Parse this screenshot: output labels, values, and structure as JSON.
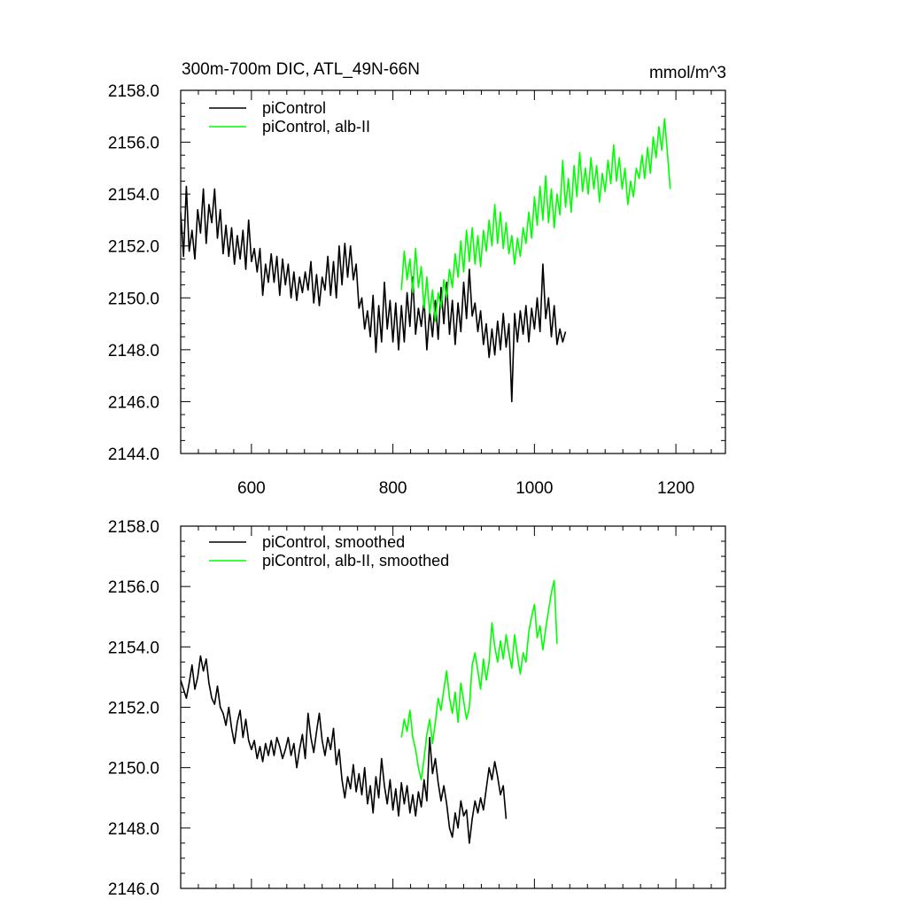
{
  "chart_data": [
    {
      "type": "line",
      "title": "300m-700m DIC, ATL_49N-66N",
      "units": "mmol/m^3",
      "xlabel": "",
      "ylabel": "",
      "xlim": [
        500,
        1270
      ],
      "ylim": [
        2144.0,
        2158.0
      ],
      "x_ticks": [
        600,
        800,
        1000,
        1200
      ],
      "x_tick_labels": [
        "600",
        "800",
        "1000",
        "1200"
      ],
      "y_ticks": [
        2144.0,
        2146.0,
        2148.0,
        2150.0,
        2152.0,
        2154.0,
        2156.0,
        2158.0
      ],
      "y_tick_labels": [
        "2144.0",
        "2146.0",
        "2148.0",
        "2150.0",
        "2152.0",
        "2154.0",
        "2156.0",
        "2158.0"
      ],
      "grid": false,
      "legend_position": "top-left",
      "series": [
        {
          "name": "piControl",
          "color": "#000000",
          "x_start": 500,
          "x_step": 4,
          "values": [
            2153.3,
            2151.6,
            2154.3,
            2151.8,
            2152.6,
            2151.5,
            2153.4,
            2152.5,
            2154.2,
            2152.1,
            2153.6,
            2152.9,
            2154.2,
            2152.3,
            2153.4,
            2151.7,
            2152.8,
            2151.6,
            2152.7,
            2151.3,
            2152.4,
            2151.5,
            2152.6,
            2151.1,
            2153.0,
            2151.4,
            2151.9,
            2151.0,
            2151.9,
            2150.1,
            2151.3,
            2150.6,
            2151.7,
            2150.6,
            2151.6,
            2150.1,
            2151.5,
            2150.5,
            2151.3,
            2150.0,
            2151.0,
            2149.9,
            2150.8,
            2150.2,
            2151.0,
            2150.3,
            2151.4,
            2149.8,
            2150.9,
            2149.7,
            2150.8,
            2150.3,
            2151.6,
            2150.1,
            2151.4,
            2150.0,
            2152.0,
            2150.5,
            2152.1,
            2150.8,
            2152.0,
            2150.7,
            2151.3,
            2149.6,
            2150.0,
            2148.8,
            2149.5,
            2148.5,
            2150.1,
            2147.9,
            2149.7,
            2148.3,
            2150.6,
            2148.8,
            2149.9,
            2148.3,
            2149.8,
            2148.0,
            2149.7,
            2148.3,
            2150.2,
            2148.9,
            2150.8,
            2148.6,
            2149.6,
            2148.9,
            2149.9,
            2148.0,
            2149.5,
            2148.5,
            2149.9,
            2148.4,
            2150.4,
            2149.0,
            2150.6,
            2148.6,
            2149.9,
            2148.2,
            2149.8,
            2148.7,
            2150.6,
            2149.2,
            2151.1,
            2149.3,
            2149.8,
            2148.7,
            2149.5,
            2148.2,
            2149.0,
            2147.7,
            2148.8,
            2147.8,
            2149.1,
            2148.0,
            2149.4,
            2148.1,
            2149.0,
            2146.0,
            2149.4,
            2148.3,
            2149.5,
            2148.6,
            2149.7,
            2148.3,
            2149.6,
            2148.8,
            2150.0,
            2148.7,
            2151.3,
            2149.2,
            2150.0,
            2148.5,
            2149.7,
            2148.2,
            2148.8,
            2148.3,
            2148.7
          ]
        },
        {
          "name": "piControl, alb-II",
          "color": "#00ff00",
          "x_start": 812,
          "x_step": 4,
          "values": [
            2150.3,
            2151.8,
            2150.7,
            2151.5,
            2150.2,
            2151.9,
            2150.4,
            2151.2,
            2149.6,
            2150.8,
            2149.4,
            2150.3,
            2149.1,
            2150.2,
            2149.6,
            2150.7,
            2150.0,
            2151.1,
            2150.4,
            2151.7,
            2150.8,
            2152.2,
            2151.0,
            2152.6,
            2151.4,
            2152.7,
            2151.3,
            2152.4,
            2151.2,
            2152.6,
            2151.8,
            2153.0,
            2152.0,
            2153.6,
            2152.1,
            2153.3,
            2151.9,
            2152.9,
            2151.7,
            2152.4,
            2151.3,
            2152.3,
            2151.6,
            2152.7,
            2152.1,
            2153.3,
            2152.3,
            2153.9,
            2152.8,
            2154.3,
            2153.0,
            2154.7,
            2152.9,
            2154.2,
            2152.7,
            2154.0,
            2153.2,
            2155.3,
            2153.5,
            2154.6,
            2153.3,
            2155.1,
            2153.9,
            2155.6,
            2154.1,
            2155.0,
            2154.0,
            2155.4,
            2154.2,
            2155.1,
            2153.7,
            2154.8,
            2154.1,
            2155.3,
            2154.4,
            2155.9,
            2154.5,
            2155.4,
            2154.2,
            2155.0,
            2153.6,
            2154.5,
            2153.9,
            2155.0,
            2154.6,
            2155.5,
            2154.6,
            2155.8,
            2154.8,
            2156.2,
            2155.4,
            2156.6,
            2155.7,
            2156.9,
            2155.6,
            2154.2
          ]
        }
      ]
    },
    {
      "type": "line",
      "title": "",
      "xlabel": "",
      "ylabel": "",
      "xlim": [
        500,
        1270
      ],
      "ylim": [
        2146.0,
        2158.0
      ],
      "x_ticks": [
        600,
        800,
        1000,
        1200
      ],
      "y_ticks": [
        2146.0,
        2148.0,
        2150.0,
        2152.0,
        2154.0,
        2156.0,
        2158.0
      ],
      "y_tick_labels": [
        "2146.0",
        "2148.0",
        "2150.0",
        "2152.0",
        "2154.0",
        "2156.0",
        "2158.0"
      ],
      "grid": false,
      "legend_position": "top-left",
      "series": [
        {
          "name": "piControl, smoothed",
          "color": "#000000",
          "x_start": 500,
          "x_step": 4,
          "values": [
            2152.9,
            2152.6,
            2152.3,
            2152.8,
            2153.4,
            2152.6,
            2153.0,
            2153.7,
            2153.2,
            2153.6,
            2152.8,
            2152.3,
            2152.1,
            2152.7,
            2152.0,
            2151.8,
            2151.4,
            2152.0,
            2151.3,
            2150.8,
            2151.5,
            2151.9,
            2151.0,
            2151.6,
            2150.9,
            2150.6,
            2150.9,
            2150.3,
            2150.7,
            2150.2,
            2150.8,
            2150.4,
            2150.9,
            2150.4,
            2151.0,
            2150.7,
            2150.3,
            2150.6,
            2151.0,
            2150.4,
            2150.8,
            2150.0,
            2150.6,
            2151.1,
            2150.3,
            2151.8,
            2151.0,
            2150.5,
            2151.2,
            2151.8,
            2150.9,
            2150.4,
            2151.0,
            2150.6,
            2151.3,
            2150.1,
            2150.6,
            2149.6,
            2149.0,
            2149.7,
            2149.3,
            2150.1,
            2149.2,
            2149.8,
            2149.1,
            2150.0,
            2148.8,
            2149.4,
            2148.5,
            2149.7,
            2149.0,
            2150.3,
            2149.4,
            2148.8,
            2149.6,
            2148.6,
            2149.3,
            2148.4,
            2149.5,
            2148.8,
            2149.4,
            2148.5,
            2149.1,
            2148.4,
            2149.2,
            2148.7,
            2149.6,
            2148.9,
            2151.0,
            2149.8,
            2150.3,
            2149.5,
            2148.9,
            2149.4,
            2148.8,
            2148.0,
            2147.7,
            2148.5,
            2148.0,
            2148.9,
            2148.4,
            2148.6,
            2147.5,
            2148.3,
            2148.9,
            2148.5,
            2149.0,
            2148.6,
            2149.3,
            2150.0,
            2149.6,
            2150.2,
            2149.7,
            2149.1,
            2149.4,
            2148.3
          ]
        },
        {
          "name": "piControl, alb-II, smoothed",
          "color": "#00ff00",
          "x_start": 812,
          "x_step": 4,
          "values": [
            2151.0,
            2151.6,
            2151.2,
            2151.9,
            2151.0,
            2150.6,
            2150.0,
            2149.6,
            2150.3,
            2151.1,
            2151.6,
            2150.8,
            2151.5,
            2152.3,
            2151.9,
            2152.6,
            2153.2,
            2152.3,
            2151.8,
            2152.5,
            2151.5,
            2152.8,
            2152.2,
            2151.6,
            2152.0,
            2153.4,
            2153.8,
            2153.2,
            2152.6,
            2153.6,
            2152.9,
            2153.5,
            2154.8,
            2154.0,
            2153.5,
            2154.2,
            2153.6,
            2154.4,
            2153.8,
            2153.3,
            2154.4,
            2153.7,
            2153.1,
            2153.8,
            2153.5,
            2154.5,
            2155.0,
            2155.4,
            2154.3,
            2154.7,
            2153.9,
            2154.6,
            2155.2,
            2155.8,
            2156.2,
            2154.1
          ]
        }
      ]
    }
  ]
}
